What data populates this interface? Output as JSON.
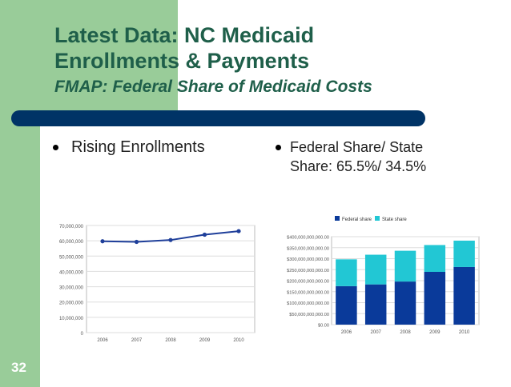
{
  "slide": {
    "title_line1": "Latest Data: NC Medicaid",
    "title_line2": "Enrollments & Payments",
    "subtitle": "FMAP: Federal Share of Medicaid Costs",
    "bullet_left": "Rising Enrollments",
    "bullet_right_line1": "Federal Share/ State",
    "bullet_right_line2": "Share: 65.5%/ 34.5%",
    "slide_number": "32"
  },
  "colors": {
    "green_panel": "#99cc99",
    "title_text": "#1f5f4a",
    "divider_bar": "#003366",
    "federal_share": "#0a3a9a",
    "state_share": "#22c7d4",
    "line_series": "#1f3f9a"
  },
  "chart_data": [
    {
      "type": "line",
      "categories": [
        "2006",
        "2007",
        "2008",
        "2009",
        "2010"
      ],
      "values": [
        59700000,
        59300000,
        60500000,
        64000000,
        66300000
      ],
      "ylim": [
        0,
        70000000
      ],
      "yticks": [
        0,
        10000000,
        20000000,
        30000000,
        40000000,
        50000000,
        60000000,
        70000000
      ],
      "ytick_labels": [
        "0",
        "10,000,000",
        "20,000,000",
        "30,000,000",
        "40,000,000",
        "50,000,000",
        "60,000,000",
        "70,000,000"
      ],
      "grid": true
    },
    {
      "type": "bar",
      "stacked": true,
      "categories": [
        "2006",
        "2007",
        "2008",
        "2009",
        "2010"
      ],
      "series": [
        {
          "name": "Federal share",
          "values": [
            175000000000,
            183000000000,
            196000000000,
            240000000000,
            262000000000
          ]
        },
        {
          "name": "State share",
          "values": [
            122000000000,
            135000000000,
            140000000000,
            122000000000,
            120000000000
          ]
        }
      ],
      "ylim": [
        0,
        400000000000
      ],
      "yticks": [
        0,
        50000000000,
        100000000000,
        150000000000,
        200000000000,
        250000000000,
        300000000000,
        350000000000,
        400000000000
      ],
      "ytick_labels": [
        "$0.00",
        "$50,000,000,000.00",
        "$100,000,000,000.00",
        "$150,000,000,000.00",
        "$200,000,000,000.00",
        "$250,000,000,000.00",
        "$300,000,000,000.00",
        "$350,000,000,000.00",
        "$400,000,000,000.00"
      ],
      "legend_position": "top",
      "grid": true
    }
  ]
}
